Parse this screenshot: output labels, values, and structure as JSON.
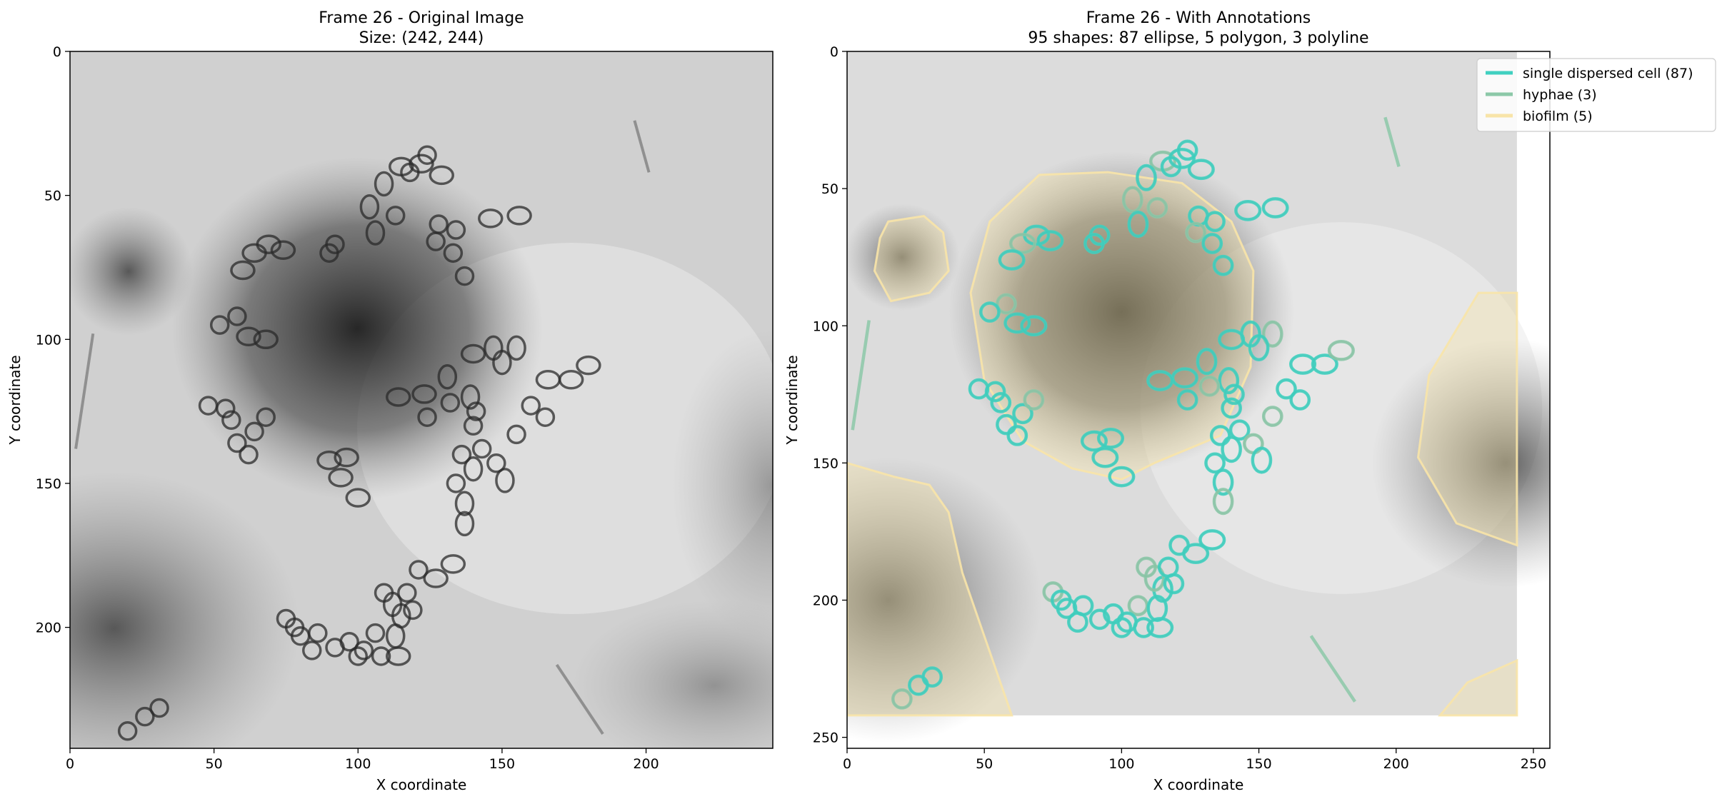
{
  "chart_data": [
    {
      "type": "image",
      "title_line1": "Frame 26 - Original Image",
      "title_line2": "Size: (242, 244)",
      "xlabel": "X coordinate",
      "ylabel": "Y coordinate",
      "xlim": [
        0,
        244
      ],
      "ylim": [
        242,
        0
      ],
      "xticks": [
        0,
        50,
        100,
        150,
        200
      ],
      "yticks": [
        0,
        50,
        100,
        150,
        200
      ],
      "image_size": [
        242,
        244
      ],
      "grayscale_regions": [
        {
          "x": 100,
          "y": 95,
          "r": 45,
          "level": 0.25
        },
        {
          "x": 20,
          "y": 75,
          "r": 15,
          "level": 0.55
        },
        {
          "x": 15,
          "y": 200,
          "r": 40,
          "level": 0.4
        },
        {
          "x": 240,
          "y": 150,
          "r": 35,
          "level": 0.45
        }
      ]
    },
    {
      "type": "image-annotation",
      "title_line1": "Frame 26 - With Annotations",
      "title_line2": "95 shapes: 87 ellipse, 5 polygon, 3 polyline",
      "xlabel": "X coordinate",
      "ylabel": "Y coordinate",
      "xlim": [
        0,
        256
      ],
      "ylim": [
        254,
        0
      ],
      "xticks": [
        0,
        50,
        100,
        150,
        200,
        250
      ],
      "yticks": [
        0,
        50,
        100,
        150,
        200,
        250
      ],
      "image_size": [
        242,
        244
      ],
      "legend": [
        {
          "label": "single dispersed cell (87)",
          "color": "#40d0c0"
        },
        {
          "label": "hyphae (3)",
          "color": "#8cc8a8"
        },
        {
          "label": "biofilm (5)",
          "color": "#f8e4a8"
        }
      ],
      "legend_placement": "top-right",
      "biofilm_polygons": [
        [
          [
            70,
            45
          ],
          [
            95,
            44
          ],
          [
            122,
            48
          ],
          [
            140,
            62
          ],
          [
            148,
            80
          ],
          [
            147,
            115
          ],
          [
            136,
            140
          ],
          [
            112,
            150
          ],
          [
            100,
            156
          ],
          [
            82,
            152
          ],
          [
            64,
            142
          ],
          [
            50,
            120
          ],
          [
            45,
            88
          ],
          [
            52,
            62
          ]
        ],
        [
          [
            15,
            62
          ],
          [
            28,
            60
          ],
          [
            35,
            66
          ],
          [
            37,
            80
          ],
          [
            30,
            88
          ],
          [
            16,
            91
          ],
          [
            10,
            80
          ],
          [
            12,
            68
          ]
        ],
        [
          [
            0,
            150
          ],
          [
            17,
            155
          ],
          [
            30,
            158
          ],
          [
            37,
            168
          ],
          [
            42,
            190
          ],
          [
            60,
            242
          ],
          [
            0,
            242
          ]
        ],
        [
          [
            230,
            88
          ],
          [
            244,
            88
          ],
          [
            244,
            180
          ],
          [
            222,
            172
          ],
          [
            208,
            148
          ],
          [
            212,
            118
          ]
        ],
        [
          [
            244,
            222
          ],
          [
            244,
            242
          ],
          [
            216,
            242
          ],
          [
            226,
            230
          ]
        ]
      ],
      "hyphae_lines": [
        [
          [
            8,
            98
          ],
          [
            2,
            138
          ]
        ],
        [
          [
            196,
            24
          ],
          [
            201,
            42
          ]
        ],
        [
          [
            169,
            213
          ],
          [
            185,
            237
          ]
        ]
      ],
      "cells": [
        [
          115,
          40,
          4,
          3
        ],
        [
          122,
          39,
          4,
          3
        ],
        [
          129,
          43,
          4,
          3
        ],
        [
          124,
          36,
          3,
          3
        ],
        [
          109,
          46,
          3,
          4
        ],
        [
          104,
          54,
          3,
          4
        ],
        [
          106,
          63,
          3,
          4
        ],
        [
          92,
          67,
          3,
          3
        ],
        [
          90,
          70,
          3,
          3
        ],
        [
          69,
          67,
          4,
          3
        ],
        [
          64,
          70,
          4,
          3
        ],
        [
          74,
          69,
          4,
          3
        ],
        [
          60,
          76,
          4,
          3
        ],
        [
          128,
          60,
          3,
          3
        ],
        [
          134,
          62,
          3,
          3
        ],
        [
          127,
          66,
          3,
          3
        ],
        [
          133,
          70,
          3,
          3
        ],
        [
          137,
          78,
          3,
          3
        ],
        [
          146,
          58,
          4,
          3
        ],
        [
          156,
          57,
          4,
          3
        ],
        [
          58,
          92,
          3,
          3
        ],
        [
          52,
          95,
          3,
          3
        ],
        [
          62,
          99,
          4,
          3
        ],
        [
          68,
          100,
          4,
          3
        ],
        [
          147,
          103,
          3,
          4
        ],
        [
          155,
          103,
          3,
          4
        ],
        [
          150,
          108,
          3,
          4
        ],
        [
          140,
          105,
          4,
          3
        ],
        [
          166,
          114,
          4,
          3
        ],
        [
          174,
          114,
          4,
          3
        ],
        [
          180,
          109,
          4,
          3
        ],
        [
          131,
          113,
          3,
          4
        ],
        [
          123,
          119,
          4,
          3
        ],
        [
          114,
          120,
          4,
          3
        ],
        [
          139,
          120,
          3,
          4
        ],
        [
          132,
          122,
          3,
          3
        ],
        [
          124,
          127,
          3,
          3
        ],
        [
          140,
          130,
          3,
          3
        ],
        [
          160,
          123,
          3,
          3
        ],
        [
          165,
          127,
          3,
          3
        ],
        [
          155,
          133,
          3,
          3
        ],
        [
          48,
          123,
          3,
          3
        ],
        [
          54,
          124,
          3,
          3
        ],
        [
          56,
          128,
          3,
          3
        ],
        [
          64,
          132,
          3,
          3
        ],
        [
          68,
          127,
          3,
          3
        ],
        [
          58,
          136,
          3,
          3
        ],
        [
          62,
          140,
          3,
          3
        ],
        [
          136,
          140,
          3,
          3
        ],
        [
          143,
          138,
          3,
          3
        ],
        [
          148,
          143,
          3,
          3
        ],
        [
          140,
          145,
          3,
          4
        ],
        [
          151,
          149,
          3,
          4
        ],
        [
          134,
          150,
          3,
          3
        ],
        [
          137,
          157,
          3,
          4
        ],
        [
          137,
          164,
          3,
          4
        ],
        [
          90,
          142,
          4,
          3
        ],
        [
          96,
          141,
          4,
          3
        ],
        [
          94,
          148,
          4,
          3
        ],
        [
          100,
          155,
          4,
          3
        ],
        [
          75,
          197,
          3,
          3
        ],
        [
          80,
          203,
          3,
          3
        ],
        [
          84,
          208,
          3,
          3
        ],
        [
          92,
          207,
          3,
          3
        ],
        [
          100,
          210,
          3,
          3
        ],
        [
          106,
          202,
          3,
          3
        ],
        [
          108,
          210,
          3,
          3
        ],
        [
          114,
          210,
          4,
          3
        ],
        [
          113,
          203,
          3,
          4
        ],
        [
          115,
          196,
          3,
          4
        ],
        [
          112,
          192,
          3,
          4
        ],
        [
          117,
          188,
          3,
          3
        ],
        [
          121,
          180,
          3,
          3
        ],
        [
          127,
          183,
          4,
          3
        ],
        [
          133,
          178,
          4,
          3
        ],
        [
          20,
          236,
          3,
          3
        ],
        [
          26,
          231,
          3,
          3
        ],
        [
          31,
          228,
          3,
          3
        ],
        [
          86,
          202,
          3,
          3
        ],
        [
          97,
          205,
          3,
          3
        ],
        [
          109,
          188,
          3,
          3
        ],
        [
          119,
          194,
          3,
          3
        ],
        [
          102,
          208,
          3,
          3
        ],
        [
          78,
          200,
          3,
          3
        ],
        [
          118,
          42,
          3,
          3
        ],
        [
          113,
          57,
          3,
          3
        ],
        [
          141,
          125,
          3,
          3
        ]
      ]
    }
  ]
}
